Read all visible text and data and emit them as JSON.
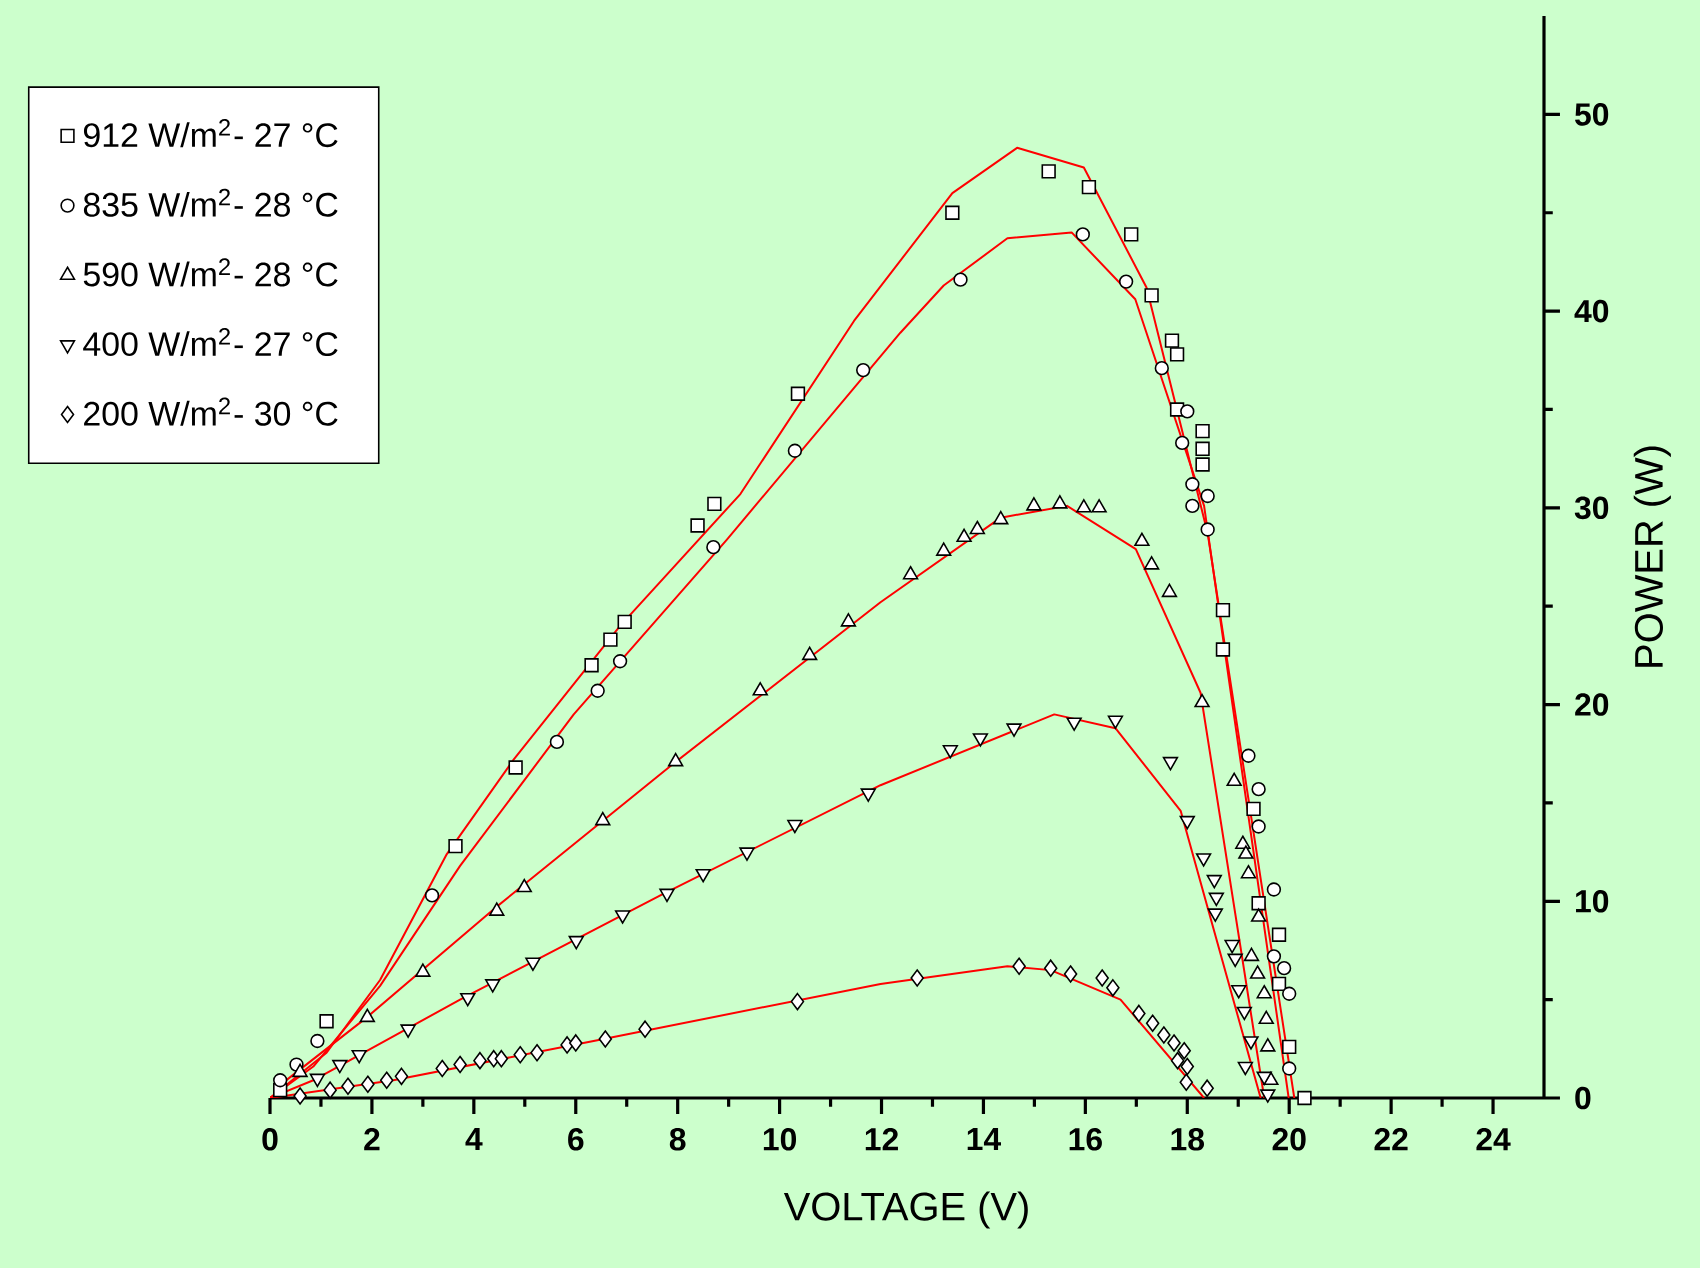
{
  "chart_data": {
    "type": "scatter",
    "xlabel": "VOLTAGE (V)",
    "ylabel": "POWER  (W)",
    "xlim": [
      0,
      25
    ],
    "ylim": [
      0,
      55
    ],
    "xticks": [
      0,
      2,
      4,
      6,
      8,
      10,
      12,
      14,
      16,
      18,
      20,
      22,
      24
    ],
    "yticks": [
      0,
      10,
      20,
      30,
      40,
      50
    ],
    "legend": "top left",
    "grid": false,
    "series": [
      {
        "name": "912 W/m$^{2}$- 27 °C",
        "color": "#000000",
        "marker": "square",
        "x": [
          0.2,
          1.11,
          3.64,
          4.82,
          6.31,
          6.68,
          6.96,
          8.39,
          8.72,
          10.36,
          13.39,
          15.28,
          16.07,
          16.9,
          17.3,
          17.7,
          17.8,
          17.8,
          18.3,
          18.3,
          18.3,
          18.7,
          18.7,
          19.3,
          19.4,
          19.8,
          19.8,
          20.0,
          20.3
        ],
        "values": [
          0.4,
          3.9,
          12.8,
          16.8,
          22.0,
          23.3,
          24.2,
          29.1,
          30.2,
          35.8,
          45.0,
          47.1,
          46.3,
          43.9,
          40.8,
          38.5,
          37.8,
          35.0,
          33.9,
          33.0,
          32.2,
          24.8,
          22.8,
          14.7,
          9.9,
          8.3,
          5.8,
          2.6,
          0
        ]
      },
      {
        "name": "835 W/m$^{2}$- 28 °C",
        "color": "#000000",
        "marker": "circle",
        "x": [
          0.2,
          0.52,
          0.93,
          3.18,
          5.63,
          6.43,
          6.87,
          8.7,
          10.3,
          11.64,
          13.55,
          15.95,
          16.8,
          17.5,
          17.9,
          18.0,
          18.1,
          18.4,
          18.1,
          18.4,
          19.2,
          19.4,
          19.4,
          19.7,
          19.7,
          19.9,
          20.0,
          20.0
        ],
        "values": [
          0.9,
          1.7,
          2.9,
          10.3,
          18.1,
          20.7,
          22.2,
          28.0,
          32.9,
          37.0,
          41.6,
          43.9,
          41.5,
          37.1,
          33.3,
          34.9,
          30.1,
          30.6,
          31.2,
          28.9,
          17.4,
          15.7,
          13.8,
          10.6,
          7.2,
          6.6,
          5.3,
          1.5
        ]
      },
      {
        "name": "590 W/m$^{2}$- 28 °C",
        "color": "#000000",
        "marker": "triangle",
        "x": [
          0.59,
          1.91,
          3.0,
          4.45,
          4.99,
          6.53,
          7.96,
          9.62,
          10.59,
          11.35,
          12.57,
          13.22,
          13.62,
          13.88,
          14.34,
          14.99,
          15.5,
          15.97,
          16.27,
          17.11,
          17.3,
          17.65,
          18.29,
          18.92,
          19.09,
          19.15,
          19.2,
          19.4,
          19.26,
          19.38,
          19.51,
          19.55,
          19.58,
          19.64
        ],
        "values": [
          1.3,
          4.1,
          6.4,
          9.5,
          10.7,
          14.1,
          17.1,
          20.7,
          22.5,
          24.2,
          26.6,
          27.8,
          28.5,
          28.9,
          29.4,
          30.1,
          30.2,
          30.0,
          30.0,
          28.3,
          27.1,
          25.7,
          20.1,
          16.1,
          12.9,
          12.4,
          11.4,
          9.2,
          7.2,
          6.3,
          5.3,
          4.0,
          2.6,
          0.9
        ]
      },
      {
        "name": "400 W/m$^{2}$- 27 °C",
        "color": "#000000",
        "marker": "triangle-down",
        "x": [
          0.93,
          1.37,
          1.75,
          2.71,
          3.88,
          4.37,
          5.16,
          6.01,
          6.92,
          7.79,
          8.5,
          9.36,
          10.3,
          11.74,
          13.35,
          13.94,
          14.6,
          15.78,
          16.59,
          17.67,
          18.0,
          18.32,
          18.53,
          18.57,
          18.55,
          18.88,
          18.94,
          19.01,
          19.12,
          19.25,
          19.14,
          19.51,
          19.58
        ],
        "values": [
          1.0,
          1.7,
          2.2,
          3.5,
          5.1,
          5.8,
          6.9,
          8.0,
          9.3,
          10.4,
          11.4,
          12.5,
          13.9,
          15.5,
          17.7,
          18.3,
          18.8,
          19.1,
          19.2,
          17.1,
          14.1,
          12.2,
          11.1,
          10.2,
          9.4,
          7.8,
          7.1,
          5.5,
          4.4,
          2.9,
          1.6,
          1.1,
          0.2
        ]
      },
      {
        "name": "200 W/m$^{2}$- 30 °C",
        "color": "#000000",
        "marker": "diamond",
        "x": [
          0.59,
          1.18,
          1.53,
          1.92,
          2.29,
          2.58,
          3.38,
          3.73,
          4.12,
          4.39,
          4.54,
          4.91,
          5.24,
          5.83,
          6.0,
          6.58,
          7.36,
          10.35,
          12.7,
          14.7,
          15.32,
          15.71,
          16.33,
          16.54,
          17.05,
          17.32,
          17.54,
          17.74,
          17.94,
          17.81,
          18.0,
          17.98,
          18.39
        ],
        "values": [
          0.1,
          0.4,
          0.6,
          0.7,
          0.9,
          1.1,
          1.5,
          1.7,
          1.9,
          2.0,
          2.0,
          2.2,
          2.3,
          2.7,
          2.8,
          3.0,
          3.5,
          4.9,
          6.1,
          6.7,
          6.6,
          6.3,
          6.1,
          5.6,
          4.3,
          3.8,
          3.2,
          2.8,
          2.4,
          1.9,
          1.6,
          0.8,
          0.5
        ]
      },
      {
        "type": "line",
        "color": "#ff0000",
        "marker": "none",
        "x": [
          0,
          1.11,
          2.16,
          3.47,
          4.78,
          6.87,
          9.23,
          11.46,
          13.39,
          14.66,
          15.97,
          17.2,
          18.4,
          20.1
        ],
        "values": [
          0,
          2.3,
          6.0,
          12.4,
          17.2,
          24.0,
          30.7,
          39.5,
          46.0,
          48.3,
          47.3,
          41.2,
          28.7,
          0
        ]
      },
      {
        "type": "line",
        "color": "#ff0000",
        "marker": "none",
        "x": [
          0,
          0.85,
          2.16,
          3.73,
          5.96,
          8.97,
          12.37,
          13.22,
          14.47,
          15.73,
          16.98,
          18.33,
          19.99
        ],
        "values": [
          0,
          1.6,
          5.7,
          11.8,
          19.5,
          28.4,
          38.9,
          41.3,
          43.7,
          44.0,
          40.6,
          30.1,
          0
        ]
      },
      {
        "type": "line",
        "color": "#ff0000",
        "marker": "none",
        "x": [
          0.07,
          1.9,
          4.39,
          7.92,
          11.98,
          14.34,
          15.64,
          16.99,
          18.26,
          19.51
        ],
        "values": [
          0.4,
          4.1,
          9.6,
          17.0,
          25.2,
          29.5,
          30.1,
          27.9,
          20.6,
          0
        ]
      },
      {
        "type": "line",
        "color": "#ff0000",
        "marker": "none",
        "x": [
          0,
          0.85,
          3.73,
          7.66,
          11.98,
          15.39,
          16.59,
          17.87,
          19.44
        ],
        "values": [
          0,
          0.9,
          5.0,
          10.3,
          15.9,
          19.5,
          18.8,
          14.6,
          0
        ]
      },
      {
        "type": "line",
        "color": "#ff0000",
        "marker": "none",
        "x": [
          0,
          2.42,
          6.35,
          11.98,
          14.47,
          15.32,
          16.69,
          18.33
        ],
        "values": [
          0,
          0.9,
          2.9,
          5.8,
          6.7,
          6.5,
          5.0,
          0
        ]
      }
    ]
  }
}
